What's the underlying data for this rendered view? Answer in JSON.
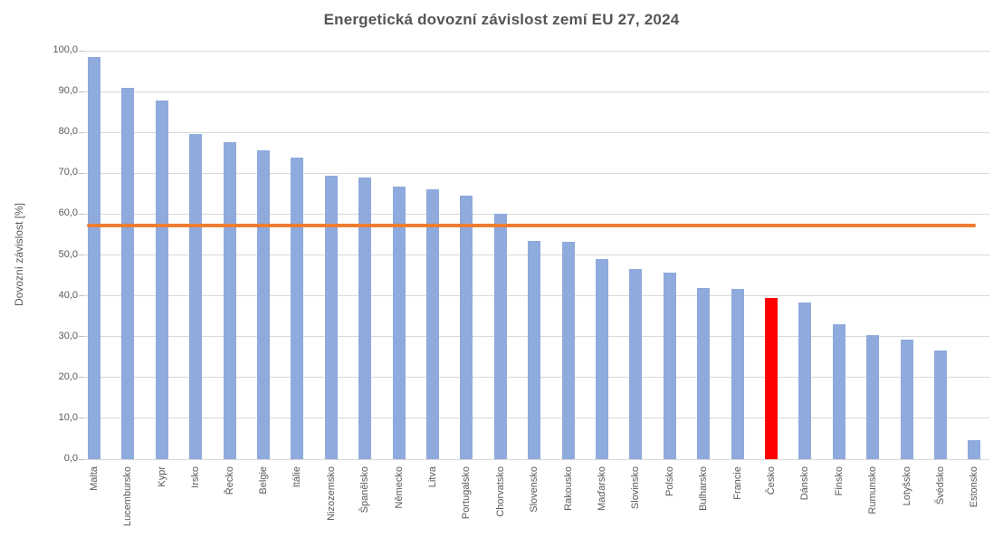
{
  "chart_data": {
    "type": "bar",
    "title": "Energetická dovozní závislost zemí EU 27, 2024",
    "xlabel": "",
    "ylabel": "Dovozní závislost [%]",
    "ylim": [
      0,
      100
    ],
    "grid": true,
    "legend": false,
    "ytick_values": [
      0,
      10,
      20,
      30,
      40,
      50,
      60,
      70,
      80,
      90,
      100
    ],
    "ytick_labels": [
      "0,0",
      "10,0",
      "20,0",
      "30,0",
      "40,0",
      "50,0",
      "60,0",
      "70,0",
      "80,0",
      "90,0",
      "100,0"
    ],
    "categories": [
      "Malta",
      "Lucembursko",
      "Kypr",
      "Irsko",
      "Řecko",
      "Belgie",
      "Itálie",
      "Nizozemsko",
      "Španělsko",
      "Německo",
      "Litva",
      "Portugalsko",
      "Chorvatsko",
      "Slovensko",
      "Rakousko",
      "Maďarsko",
      "Slovinsko",
      "Polsko",
      "Bulharsko",
      "Francie",
      "Česko",
      "Dánsko",
      "Finsko",
      "Rumunsko",
      "Lotyšsko",
      "Švédsko",
      "Estonsko"
    ],
    "values": [
      98.4,
      91.0,
      87.7,
      79.5,
      77.7,
      75.5,
      73.8,
      69.3,
      68.9,
      66.8,
      66.0,
      64.5,
      60.0,
      53.4,
      53.2,
      49.0,
      46.5,
      45.7,
      42.0,
      41.7,
      39.5,
      38.3,
      33.0,
      30.3,
      29.2,
      26.5,
      4.7
    ],
    "bar_color": "#8FAADC",
    "highlight_category": "Česko",
    "highlight_color": "#FF0000",
    "reference_line": {
      "value": 57.1,
      "color": "#ED7D31"
    },
    "colors": {
      "gridline": "#D9D9D9",
      "axis_line": "#BFBFBF",
      "text": "#595959",
      "title_text": "#555555",
      "background": "#FFFFFF"
    }
  }
}
